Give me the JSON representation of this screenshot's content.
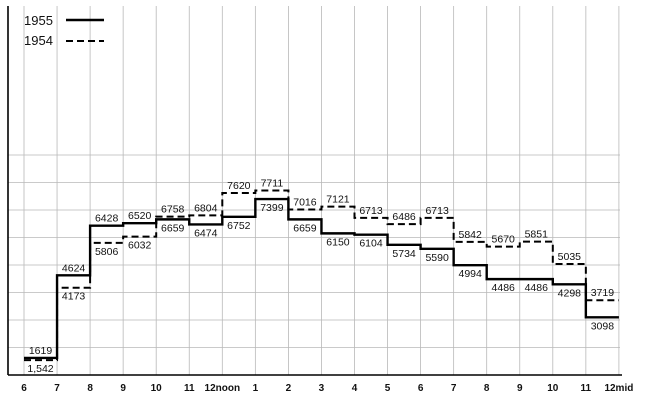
{
  "chart_data": {
    "type": "line",
    "title": "",
    "xlabel": "",
    "ylabel": "",
    "x_tick_labels": [
      "6",
      "7",
      "8",
      "9",
      "10",
      "11",
      "12noon",
      "1",
      "2",
      "3",
      "4",
      "5",
      "6",
      "7",
      "8",
      "9",
      "10",
      "11",
      "12mid"
    ],
    "ylim": [
      1000,
      9500
    ],
    "grid": true,
    "legend": "top-left",
    "series": [
      {
        "name": "1955",
        "style": "solid",
        "values": [
          1619,
          4624,
          6428,
          6520,
          6659,
          6474,
          6752,
          7399,
          6659,
          6150,
          6104,
          5734,
          5590,
          4994,
          4486,
          4486,
          4298,
          3098
        ]
      },
      {
        "name": "1954",
        "style": "dashed",
        "values": [
          1542,
          4173,
          5806,
          6032,
          6758,
          6804,
          7620,
          7711,
          7016,
          7121,
          6713,
          6486,
          6713,
          5842,
          5670,
          5851,
          5035,
          3719
        ]
      }
    ],
    "value_labels": {
      "1955": [
        "1619",
        "4624",
        "6428",
        "6520",
        "6659",
        "6474",
        "6752",
        "7399",
        "6659",
        "6150",
        "6104",
        "5734",
        "5590",
        "4994",
        "4486",
        "4486",
        "4298",
        "3098"
      ],
      "1954": [
        "1,542",
        "4173",
        "5806",
        "6032",
        "6758",
        "6804",
        "7620",
        "7711",
        "7016",
        "7121",
        "6713",
        "6486",
        "6713",
        "5842",
        "5670",
        "5851",
        "5035",
        "3719"
      ]
    }
  }
}
